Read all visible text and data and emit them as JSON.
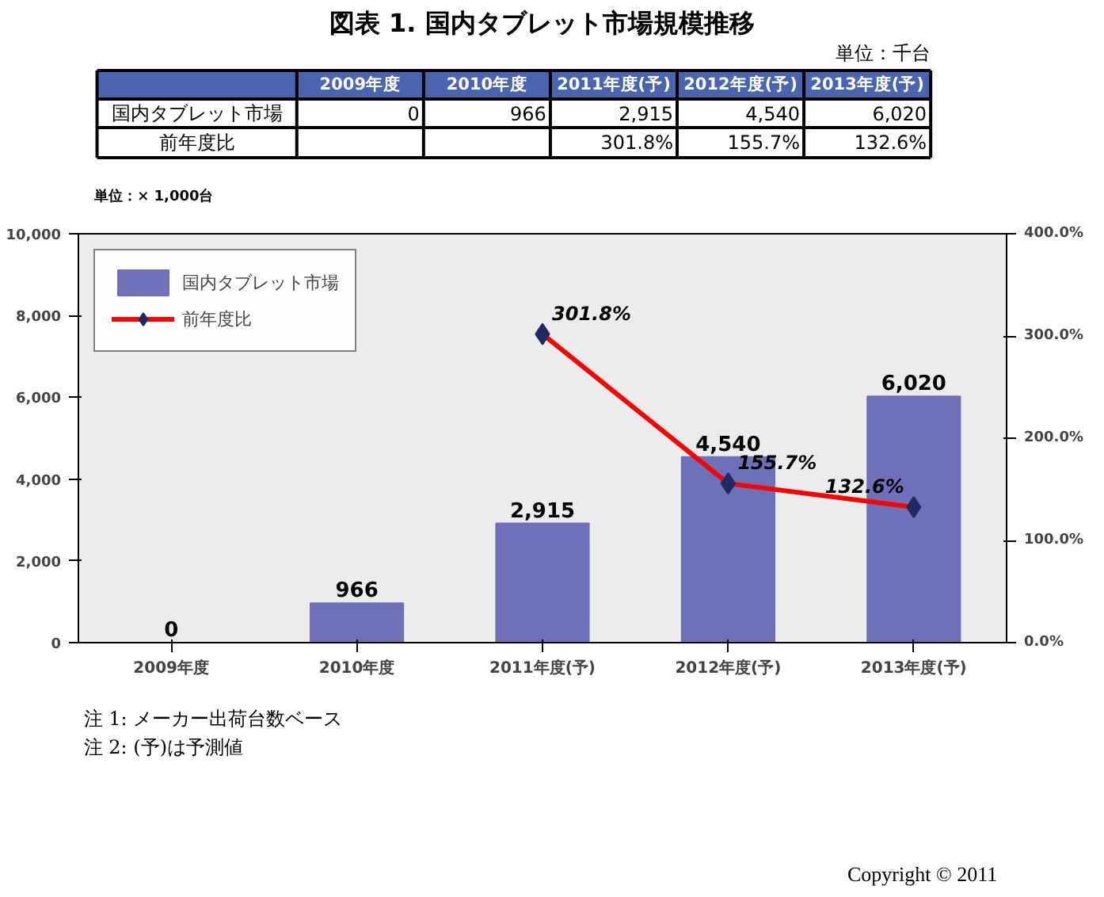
{
  "chart_data": {
    "type": "bar",
    "title": "図表 1. 国内タブレット市場規模推移",
    "annotations": [
      "単位：千台",
      "単位：× 1,000台",
      "注 1: メーカー出荷台数ベース",
      "注 2: (予)は予測値",
      "Copyright © 2011"
    ],
    "categories": [
      "2009年度",
      "2010年度",
      "2011年度(予)",
      "2012年度(予)",
      "2013年度(予)"
    ],
    "series": [
      {
        "name": "国内タブレット市場",
        "color": "#6e71b8",
        "values": [
          0,
          966,
          2915,
          4540,
          6020
        ],
        "value_labels": [
          "0",
          "966",
          "2,915",
          "4,540",
          "6,020"
        ]
      },
      {
        "name": "前年度比",
        "type": "line",
        "axis": "y2",
        "color": "#ff0000",
        "values": [
          null,
          null,
          301.8,
          155.7,
          132.6
        ],
        "value_labels": [
          null,
          null,
          "301.8%",
          "155.7%",
          "132.6%"
        ]
      }
    ],
    "ylim": [
      0,
      10000
    ],
    "yticks": [
      0,
      {
        "value": 2000,
        "label": "2,000"
      },
      {
        "value": 4000,
        "label": "4,000"
      },
      {
        "value": 6000,
        "label": "6,000"
      },
      {
        "value": 8000,
        "label": "8,000"
      },
      {
        "value": 10000,
        "label": "10,000"
      }
    ],
    "y2lim": [
      0,
      400
    ],
    "y2ticks": [
      {
        "value": 0,
        "label": "0.0%"
      },
      {
        "value": 100,
        "label": "100.0%"
      },
      {
        "value": 200,
        "label": "200.0%"
      },
      {
        "value": 300,
        "label": "300.0%"
      },
      {
        "value": 400,
        "label": "400.0%"
      }
    ],
    "marker": "diamond",
    "line_style": "solid",
    "legend": "top left",
    "grid": false
  }
}
